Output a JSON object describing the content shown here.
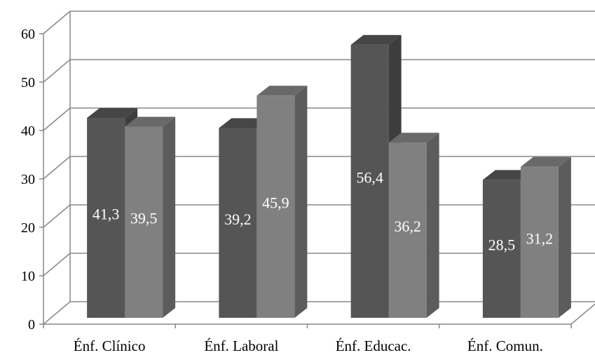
{
  "chart_data": {
    "type": "bar",
    "style": "3d-clustered-column",
    "categories": [
      "Énf. Clínico",
      "Énf. Laboral",
      "Énf. Educac.",
      "Énf. Comun."
    ],
    "series": [
      {
        "color": "#555555",
        "values": [
          41.3,
          39.2,
          56.4,
          28.5
        ],
        "labels": [
          "41,3",
          "39,2",
          "56,4",
          "28,5"
        ]
      },
      {
        "color": "#808080",
        "values": [
          39.5,
          45.9,
          36.2,
          31.2
        ],
        "labels": [
          "39,5",
          "45,9",
          "36,2",
          "31,2"
        ]
      }
    ],
    "ylim": [
      0,
      60
    ],
    "yticks": [
      "0",
      "10",
      "20",
      "30",
      "40",
      "50",
      "60"
    ],
    "grid": true,
    "legend": "none",
    "title": "",
    "xlabel": "",
    "ylabel": ""
  }
}
